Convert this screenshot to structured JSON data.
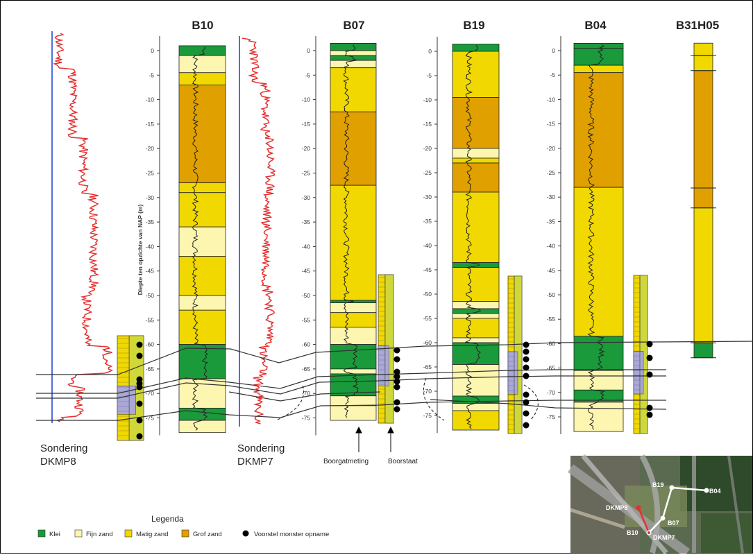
{
  "colors": {
    "klei": "#1a9a3a",
    "fijn": "#fdf6b0",
    "matig": "#f0d800",
    "grof": "#e0a000",
    "cpt_red": "#e53030",
    "cpt_blue": "#1a3fd0",
    "sample": "#000000"
  },
  "boreholes": [
    {
      "name": "B10",
      "layers": [
        {
          "top": 1,
          "bottom": -1,
          "type": "klei"
        },
        {
          "top": -1,
          "bottom": -4.5,
          "type": "fijn"
        },
        {
          "top": -4.5,
          "bottom": -7,
          "type": "matig"
        },
        {
          "top": -7,
          "bottom": -27,
          "type": "grof"
        },
        {
          "top": -27,
          "bottom": -29,
          "type": "matig"
        },
        {
          "top": -29,
          "bottom": -36,
          "type": "matig"
        },
        {
          "top": -36,
          "bottom": -42,
          "type": "fijn"
        },
        {
          "top": -42,
          "bottom": -50,
          "type": "matig"
        },
        {
          "top": -50,
          "bottom": -53,
          "type": "fijn"
        },
        {
          "top": -53,
          "bottom": -60,
          "type": "matig"
        },
        {
          "top": -60,
          "bottom": -67,
          "type": "klei"
        },
        {
          "top": -67,
          "bottom": -73,
          "type": "fijn"
        },
        {
          "top": -73,
          "bottom": -75.5,
          "type": "klei"
        },
        {
          "top": -75.5,
          "bottom": -78,
          "type": "fijn"
        }
      ]
    },
    {
      "name": "B07",
      "layers": [
        {
          "top": 1.5,
          "bottom": 0,
          "type": "klei"
        },
        {
          "top": 0,
          "bottom": -1,
          "type": "fijn"
        },
        {
          "top": -1,
          "bottom": -2,
          "type": "klei"
        },
        {
          "top": -2,
          "bottom": -3.5,
          "type": "fijn"
        },
        {
          "top": -3.5,
          "bottom": -12.5,
          "type": "matig"
        },
        {
          "top": -12.5,
          "bottom": -27.5,
          "type": "grof"
        },
        {
          "top": -27.5,
          "bottom": -51,
          "type": "matig"
        },
        {
          "top": -51,
          "bottom": -51.5,
          "type": "klei"
        },
        {
          "top": -51.5,
          "bottom": -53.5,
          "type": "fijn"
        },
        {
          "top": -53.5,
          "bottom": -56.5,
          "type": "matig"
        },
        {
          "top": -56.5,
          "bottom": -60,
          "type": "fijn"
        },
        {
          "top": -60,
          "bottom": -65,
          "type": "klei"
        },
        {
          "top": -65,
          "bottom": -66,
          "type": "fijn"
        },
        {
          "top": -66,
          "bottom": -70.5,
          "type": "klei"
        },
        {
          "top": -70.5,
          "bottom": -72.5,
          "type": "fijn"
        },
        {
          "top": -72.5,
          "bottom": -75.5,
          "type": "fijn"
        }
      ]
    },
    {
      "name": "B19",
      "layers": [
        {
          "top": 1.5,
          "bottom": 0,
          "type": "klei"
        },
        {
          "top": 0,
          "bottom": -9.5,
          "type": "matig"
        },
        {
          "top": -9.5,
          "bottom": -20,
          "type": "grof"
        },
        {
          "top": -20,
          "bottom": -22,
          "type": "fijn"
        },
        {
          "top": -22,
          "bottom": -23,
          "type": "matig"
        },
        {
          "top": -23,
          "bottom": -29,
          "type": "grof"
        },
        {
          "top": -29,
          "bottom": -43.5,
          "type": "matig"
        },
        {
          "top": -43.5,
          "bottom": -44.5,
          "type": "klei"
        },
        {
          "top": -44.5,
          "bottom": -51.5,
          "type": "matig"
        },
        {
          "top": -51.5,
          "bottom": -53,
          "type": "fijn"
        },
        {
          "top": -53,
          "bottom": -54,
          "type": "klei"
        },
        {
          "top": -54,
          "bottom": -55,
          "type": "fijn"
        },
        {
          "top": -55,
          "bottom": -59,
          "type": "matig"
        },
        {
          "top": -59,
          "bottom": -60,
          "type": "fijn"
        },
        {
          "top": -60,
          "bottom": -64.5,
          "type": "klei"
        },
        {
          "top": -64.5,
          "bottom": -71,
          "type": "fijn"
        },
        {
          "top": -71,
          "bottom": -72.5,
          "type": "klei"
        },
        {
          "top": -72.5,
          "bottom": -74,
          "type": "fijn"
        },
        {
          "top": -74,
          "bottom": -78,
          "type": "matig"
        }
      ]
    },
    {
      "name": "B04",
      "layers": [
        {
          "top": 1.5,
          "bottom": 0.5,
          "type": "klei"
        },
        {
          "top": 0.5,
          "bottom": -3,
          "type": "klei"
        },
        {
          "top": -3,
          "bottom": -4.5,
          "type": "matig"
        },
        {
          "top": -4.5,
          "bottom": -28,
          "type": "grof"
        },
        {
          "top": -28,
          "bottom": -58.5,
          "type": "matig"
        },
        {
          "top": -58.5,
          "bottom": -65.5,
          "type": "klei"
        },
        {
          "top": -65.5,
          "bottom": -69.5,
          "type": "fijn"
        },
        {
          "top": -69.5,
          "bottom": -72,
          "type": "klei"
        },
        {
          "top": -72,
          "bottom": -78,
          "type": "fijn"
        }
      ]
    },
    {
      "name": "B31H05",
      "layers": [
        {
          "top": 1.5,
          "bottom": -1,
          "type": "matig"
        },
        {
          "top": -1,
          "bottom": -4,
          "type": "matig"
        },
        {
          "top": -4,
          "bottom": -27.5,
          "type": "grof"
        },
        {
          "top": -27.5,
          "bottom": -31.5,
          "type": "grof"
        },
        {
          "top": -31.5,
          "bottom": -58.5,
          "type": "matig"
        },
        {
          "top": -58.5,
          "bottom": -61.5,
          "type": "klei"
        }
      ]
    }
  ],
  "depth_axis": {
    "label": "Diepte ten opzichte van NAP (m)",
    "ticks": [
      0,
      -5,
      -10,
      -15,
      -20,
      -25,
      -30,
      -35,
      -40,
      -45,
      -50,
      -55,
      -60,
      -65,
      -70,
      -75
    ]
  },
  "cpt_labels": [
    {
      "id": "dkmp8",
      "line1": "Sondering",
      "line2": "DKMP8"
    },
    {
      "id": "dkmp7",
      "line1": "Sondering",
      "line2": "DKMP7"
    }
  ],
  "annotations": {
    "boorgatmeting": "Boorgatmeting",
    "boorstaat": "Boorstaat"
  },
  "legend": {
    "title": "Legenda",
    "items": [
      {
        "label": "Klei",
        "type": "klei"
      },
      {
        "label": "Fijn zand",
        "type": "fijn"
      },
      {
        "label": "Matig zand",
        "type": "matig"
      },
      {
        "label": "Grof zand",
        "type": "grof"
      }
    ],
    "sample_label": "Voorstel monster opname"
  },
  "map": {
    "points": [
      {
        "label": "B19",
        "color": "#ffffff"
      },
      {
        "label": "B04",
        "color": "#ffffff"
      },
      {
        "label": "DKMP8",
        "color": "#e53030"
      },
      {
        "label": "B07",
        "color": "#ffffff"
      },
      {
        "label": "B10",
        "color": "#ffffff"
      },
      {
        "label": "DKMP7",
        "color": "#e53030"
      }
    ]
  }
}
